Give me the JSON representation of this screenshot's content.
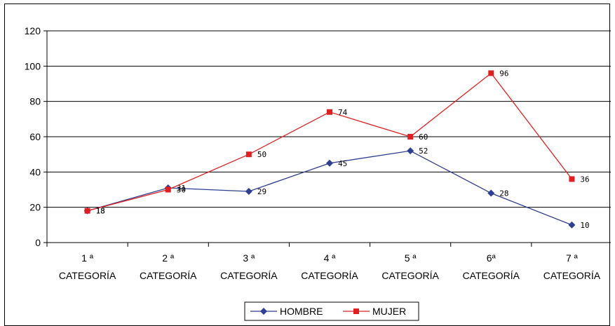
{
  "chart_data": {
    "type": "line",
    "categories": [
      [
        "1 ª",
        "CATEGORÍA"
      ],
      [
        "2 ª",
        "CATEGORÍA"
      ],
      [
        "3 ª",
        "CATEGORÍA"
      ],
      [
        "4 ª",
        "CATEGORÍA"
      ],
      [
        "5 ª",
        "CATEGORÍA"
      ],
      [
        "6ª",
        "CATEGORÍA"
      ],
      [
        "7 ª",
        "CATEGORÍA"
      ]
    ],
    "series": [
      {
        "name": "HOMBRE",
        "values": [
          18,
          31,
          29,
          45,
          52,
          28,
          10
        ],
        "labels": [
          "18",
          "31",
          "29",
          "45",
          "52",
          "28",
          "10"
        ],
        "color": "#2e3e91",
        "marker": "diamond"
      },
      {
        "name": "MUJER",
        "values": [
          18,
          30,
          50,
          74,
          60,
          96,
          36
        ],
        "labels": [
          "18",
          "30",
          "50",
          "74",
          "60",
          "96",
          "36"
        ],
        "color": "#e02020",
        "marker": "square"
      }
    ],
    "yticks": [
      "0",
      "20",
      "40",
      "60",
      "80",
      "100",
      "120"
    ],
    "ylim": [
      0,
      120
    ],
    "grid": "horizontal",
    "legend": "bottom",
    "title": "",
    "xlabel": "",
    "ylabel": ""
  }
}
